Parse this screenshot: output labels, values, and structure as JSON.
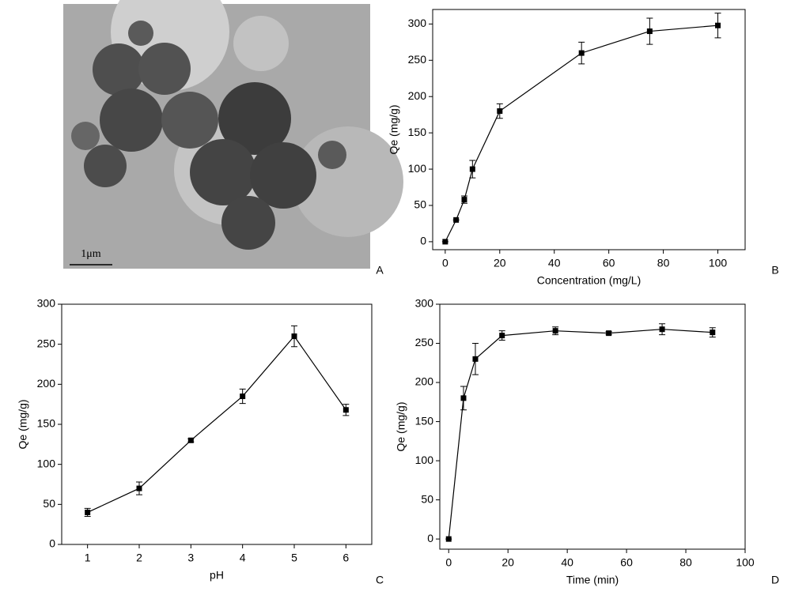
{
  "image_panel": {
    "scale_label": "1μm",
    "panel_label": "A"
  },
  "chart_data": [
    {
      "type": "line",
      "panel_label": "B",
      "x_label": "Concentration (mg/L)",
      "y_label": "Qe (mg/g)",
      "x": [
        0,
        4,
        7,
        10,
        20,
        50,
        75,
        100
      ],
      "values": [
        0,
        30,
        58,
        100,
        180,
        260,
        290,
        298
      ],
      "errors": [
        0,
        0,
        5,
        12,
        10,
        15,
        18,
        17
      ],
      "color": "#000000",
      "xlim": [
        -4.6,
        110
      ],
      "ylim": [
        -11,
        320
      ],
      "xticks": [
        0,
        20,
        40,
        60,
        80,
        100
      ],
      "yticks": [
        0,
        50,
        100,
        150,
        200,
        250,
        300
      ]
    },
    {
      "type": "line",
      "panel_label": "C",
      "x_label": "pH",
      "y_label": "Qe (mg/g)",
      "x": [
        1,
        2,
        3,
        4,
        5,
        6
      ],
      "values": [
        40,
        70,
        130,
        185,
        260,
        168
      ],
      "errors": [
        5,
        8,
        2,
        9,
        13,
        7
      ],
      "color": "#000000",
      "xlim": [
        0.5,
        6.5
      ],
      "ylim": [
        0,
        300
      ],
      "xticks": [
        1,
        2,
        3,
        4,
        5,
        6
      ],
      "yticks": [
        0,
        50,
        100,
        150,
        200,
        250,
        300
      ]
    },
    {
      "type": "line",
      "panel_label": "D",
      "x_label": "Time (min)",
      "y_label": "Qe (mg/g)",
      "x": [
        0,
        5,
        9,
        18,
        36,
        54,
        72,
        89
      ],
      "values": [
        0,
        180,
        230,
        260,
        266,
        263,
        268,
        264
      ],
      "errors": [
        0,
        15,
        20,
        6,
        5,
        2,
        7,
        6
      ],
      "color": "#000000",
      "xlim": [
        -3,
        100
      ],
      "ylim": [
        -13,
        300
      ],
      "xticks": [
        0,
        20,
        40,
        60,
        80,
        100
      ],
      "yticks": [
        0,
        50,
        100,
        150,
        200,
        250,
        300
      ]
    }
  ]
}
